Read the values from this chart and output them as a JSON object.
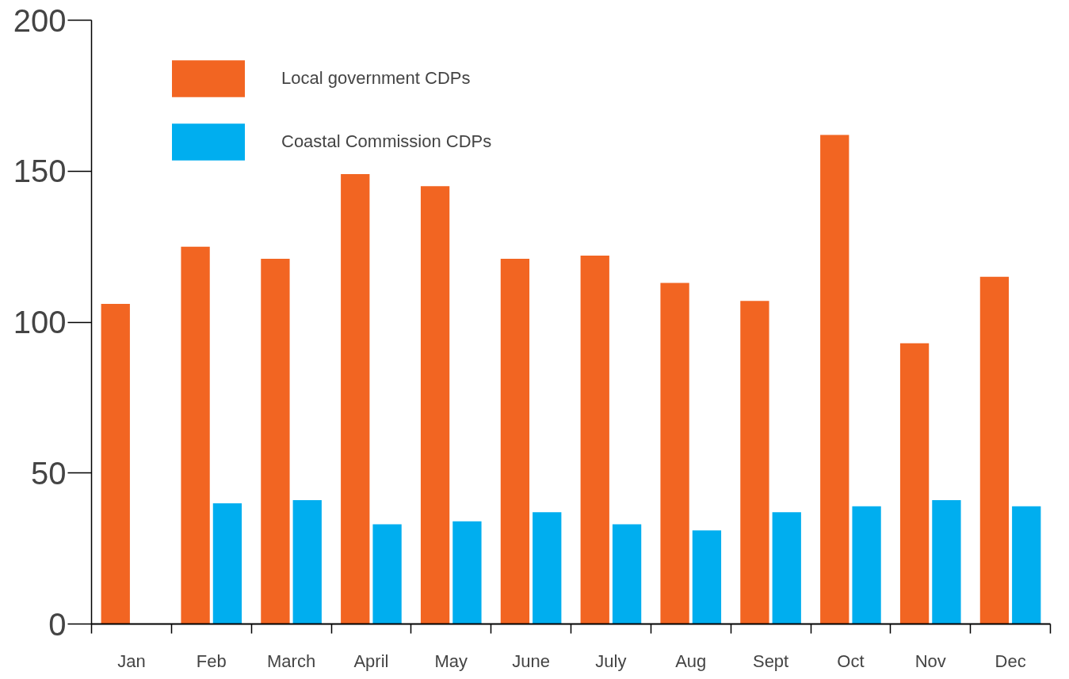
{
  "chart_data": {
    "type": "bar",
    "categories": [
      "Jan",
      "Feb",
      "March",
      "April",
      "May",
      "June",
      "July",
      "Aug",
      "Sept",
      "Oct",
      "Nov",
      "Dec"
    ],
    "series": [
      {
        "name": "Local government CDPs",
        "color": "#f26522",
        "values": [
          106,
          125,
          121,
          149,
          145,
          121,
          122,
          113,
          107,
          162,
          93,
          115
        ]
      },
      {
        "name": "Coastal Commission CDPs",
        "color": "#00aeef",
        "values": [
          null,
          40,
          41,
          33,
          34,
          37,
          33,
          31,
          37,
          39,
          41,
          39
        ]
      }
    ],
    "ylim": [
      0,
      200
    ],
    "yticks": [
      0,
      50,
      100,
      150,
      200
    ],
    "grid": false,
    "legend": "top left"
  }
}
